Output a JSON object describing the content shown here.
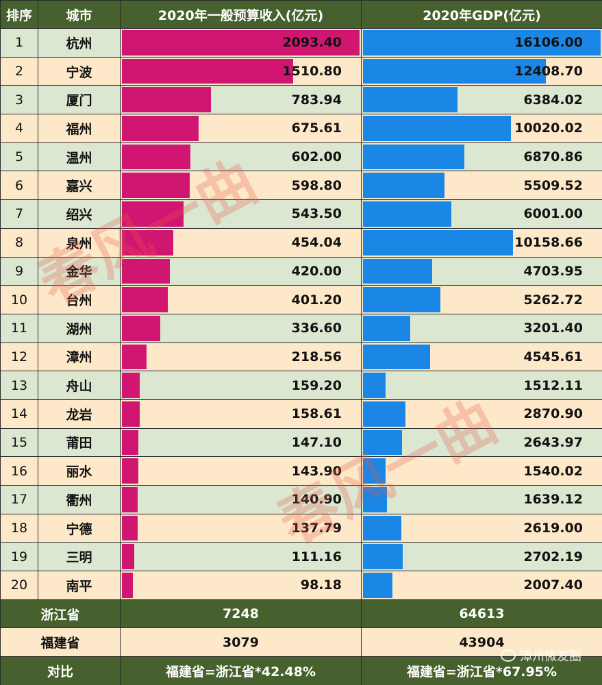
{
  "headers": {
    "rank": "排序",
    "city": "城市",
    "budget": "2020年一般预算收入(亿元)",
    "gdp": "2020年GDP(亿元)"
  },
  "rows": [
    {
      "rank": "1",
      "city": "杭州",
      "budget": "2093.40",
      "gdp": "16106.00"
    },
    {
      "rank": "2",
      "city": "宁波",
      "budget": "1510.80",
      "gdp": "12408.70"
    },
    {
      "rank": "3",
      "city": "厦门",
      "budget": "783.94",
      "gdp": "6384.02"
    },
    {
      "rank": "4",
      "city": "福州",
      "budget": "675.61",
      "gdp": "10020.02"
    },
    {
      "rank": "5",
      "city": "温州",
      "budget": "602.00",
      "gdp": "6870.86"
    },
    {
      "rank": "6",
      "city": "嘉兴",
      "budget": "598.80",
      "gdp": "5509.52"
    },
    {
      "rank": "7",
      "city": "绍兴",
      "budget": "543.50",
      "gdp": "6001.00"
    },
    {
      "rank": "8",
      "city": "泉州",
      "budget": "454.04",
      "gdp": "10158.66"
    },
    {
      "rank": "9",
      "city": "金华",
      "budget": "420.00",
      "gdp": "4703.95"
    },
    {
      "rank": "10",
      "city": "台州",
      "budget": "401.20",
      "gdp": "5262.72"
    },
    {
      "rank": "11",
      "city": "湖州",
      "budget": "336.60",
      "gdp": "3201.40"
    },
    {
      "rank": "12",
      "city": "漳州",
      "budget": "218.56",
      "gdp": "4545.61"
    },
    {
      "rank": "13",
      "city": "舟山",
      "budget": "159.20",
      "gdp": "1512.11"
    },
    {
      "rank": "14",
      "city": "龙岩",
      "budget": "158.61",
      "gdp": "2870.90"
    },
    {
      "rank": "15",
      "city": "莆田",
      "budget": "147.10",
      "gdp": "2643.97"
    },
    {
      "rank": "16",
      "city": "丽水",
      "budget": "143.90",
      "gdp": "1540.02"
    },
    {
      "rank": "17",
      "city": "衢州",
      "budget": "140.90",
      "gdp": "1639.12"
    },
    {
      "rank": "18",
      "city": "宁德",
      "budget": "137.79",
      "gdp": "2619.00"
    },
    {
      "rank": "19",
      "city": "三明",
      "budget": "111.16",
      "gdp": "2702.19"
    },
    {
      "rank": "20",
      "city": "南平",
      "budget": "98.18",
      "gdp": "2007.40"
    }
  ],
  "footer": {
    "zhejiang": {
      "label": "浙江省",
      "budget": "7248",
      "gdp": "64613"
    },
    "fujian": {
      "label": "福建省",
      "budget": "3079",
      "gdp": "43904"
    },
    "compare": {
      "label": "对比",
      "budget": "福建省=浙江省*42.48%",
      "gdp": "福建省=浙江省*67.95%"
    }
  },
  "watermark": "春风一曲",
  "credit": "漳州微友圈",
  "colors": {
    "budget_bar": "#d11672",
    "gdp_bar": "#1a86e6",
    "header_bg": "#46612d",
    "row_odd": "#dce7d2",
    "row_even": "#fde9c9"
  },
  "chart_data": {
    "type": "bar",
    "categories": [
      "杭州",
      "宁波",
      "厦门",
      "福州",
      "温州",
      "嘉兴",
      "绍兴",
      "泉州",
      "金华",
      "台州",
      "湖州",
      "漳州",
      "舟山",
      "龙岩",
      "莆田",
      "丽水",
      "衢州",
      "宁德",
      "三明",
      "南平"
    ],
    "series": [
      {
        "name": "2020年一般预算收入(亿元)",
        "values": [
          2093.4,
          1510.8,
          783.94,
          675.61,
          602.0,
          598.8,
          543.5,
          454.04,
          420.0,
          401.2,
          336.6,
          218.56,
          159.2,
          158.61,
          147.1,
          143.9,
          140.9,
          137.79,
          111.16,
          98.18
        ]
      },
      {
        "name": "2020年GDP(亿元)",
        "values": [
          16106.0,
          12408.7,
          6384.02,
          10020.02,
          6870.86,
          5509.52,
          6001.0,
          10158.66,
          4703.95,
          5262.72,
          3201.4,
          4545.61,
          1512.11,
          2870.9,
          2643.97,
          1540.02,
          1639.12,
          2619.0,
          2702.19,
          2007.4
        ]
      }
    ]
  }
}
